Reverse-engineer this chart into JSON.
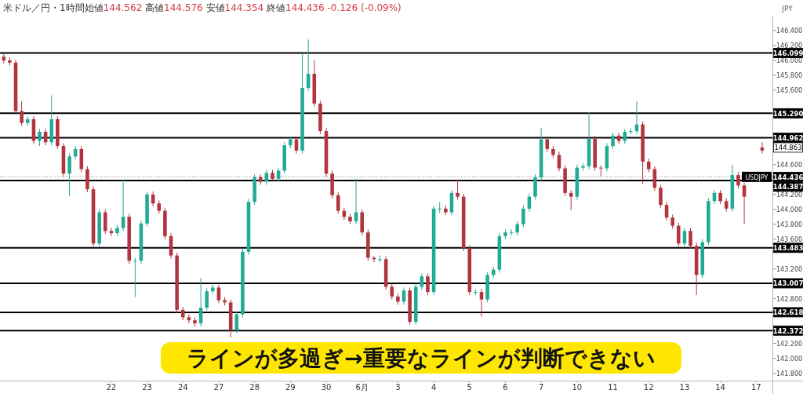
{
  "chart_data": {
    "type": "candlestick",
    "title": "米ドル／円・1時間",
    "subtitle": "始値144.562 高値144.576 安値144.354 終値144.436 -0.126 (-0.09%)",
    "ylabel": "JPY",
    "categories": [
      null,
      null,
      null,
      null,
      null,
      null,
      null,
      null,
      null,
      null,
      null,
      null,
      null,
      null,
      null,
      null,
      null,
      null,
      "22",
      null,
      null,
      null,
      null,
      null,
      "23",
      null,
      null,
      null,
      null,
      null,
      "24",
      null,
      null,
      null,
      null,
      null,
      "27",
      null,
      null,
      null,
      null,
      null,
      "28",
      null,
      null,
      null,
      null,
      null,
      "29",
      null,
      null,
      null,
      null,
      null,
      "30",
      null,
      null,
      null,
      null,
      null,
      "6月",
      null,
      null,
      null,
      null,
      null,
      "3",
      null,
      null,
      null,
      null,
      null,
      "4",
      null,
      null,
      null,
      null,
      null,
      "5",
      null,
      null,
      null,
      null,
      null,
      "6",
      null,
      null,
      null,
      null,
      null,
      "7",
      null,
      null,
      null,
      null,
      null,
      "10",
      null,
      null,
      null,
      null,
      null,
      "11",
      null,
      null,
      null,
      null,
      null,
      "12",
      null,
      null,
      null,
      null,
      null,
      "13",
      null,
      null,
      null,
      null,
      null,
      "14",
      null,
      null,
      null,
      null,
      null,
      "17",
      null
    ],
    "ohlc": [
      [
        146.05,
        146.09,
        145.96,
        146.0
      ],
      [
        146.0,
        146.04,
        145.93,
        145.97
      ],
      [
        145.97,
        146.01,
        145.28,
        145.32
      ],
      [
        145.32,
        145.45,
        145.12,
        145.16
      ],
      [
        145.16,
        145.25,
        145.12,
        145.21
      ],
      [
        145.21,
        145.25,
        144.88,
        144.92
      ],
      [
        144.92,
        145.08,
        144.85,
        145.04
      ],
      [
        145.04,
        145.08,
        144.86,
        144.9
      ],
      [
        144.9,
        145.53,
        144.86,
        145.21
      ],
      [
        145.21,
        145.25,
        144.81,
        144.85
      ],
      [
        144.85,
        144.89,
        144.44,
        144.48
      ],
      [
        144.48,
        144.75,
        144.18,
        144.71
      ],
      [
        144.71,
        144.85,
        144.67,
        144.81
      ],
      [
        144.81,
        144.85,
        144.5,
        144.54
      ],
      [
        144.54,
        144.58,
        144.23,
        144.27
      ],
      [
        144.27,
        144.31,
        143.5,
        143.54
      ],
      [
        143.54,
        144.0,
        143.5,
        143.96
      ],
      [
        143.96,
        144.0,
        143.67,
        143.71
      ],
      [
        143.71,
        143.75,
        143.64,
        143.68
      ],
      [
        143.68,
        143.79,
        143.64,
        143.75
      ],
      [
        143.75,
        144.4,
        143.71,
        143.9
      ],
      [
        143.9,
        143.94,
        143.27,
        143.31
      ],
      [
        143.31,
        143.35,
        142.82,
        143.31
      ],
      [
        143.31,
        143.85,
        143.27,
        143.81
      ],
      [
        143.81,
        144.24,
        143.77,
        144.2
      ],
      [
        144.2,
        144.24,
        144.04,
        144.08
      ],
      [
        144.08,
        144.12,
        143.94,
        143.98
      ],
      [
        143.98,
        144.02,
        143.6,
        143.64
      ],
      [
        143.64,
        143.68,
        143.34,
        143.38
      ],
      [
        143.38,
        143.42,
        142.61,
        142.65
      ],
      [
        142.65,
        142.69,
        142.51,
        142.55
      ],
      [
        142.55,
        142.59,
        142.47,
        142.51
      ],
      [
        142.51,
        142.55,
        142.43,
        142.47
      ],
      [
        142.47,
        143.08,
        142.43,
        142.68
      ],
      [
        142.68,
        142.94,
        142.64,
        142.9
      ],
      [
        142.9,
        142.99,
        142.86,
        142.95
      ],
      [
        142.95,
        142.99,
        142.74,
        142.78
      ],
      [
        142.78,
        142.82,
        142.71,
        142.75
      ],
      [
        142.75,
        142.79,
        142.28,
        142.38
      ],
      [
        142.38,
        142.63,
        142.34,
        142.59
      ],
      [
        142.59,
        143.47,
        142.55,
        143.43
      ],
      [
        143.43,
        144.14,
        143.39,
        144.1
      ],
      [
        144.1,
        144.47,
        144.06,
        144.43
      ],
      [
        144.43,
        144.47,
        144.33,
        144.37
      ],
      [
        144.37,
        144.53,
        144.33,
        144.49
      ],
      [
        144.49,
        144.53,
        144.37,
        144.41
      ],
      [
        144.41,
        144.56,
        144.37,
        144.52
      ],
      [
        144.52,
        144.9,
        144.48,
        144.86
      ],
      [
        144.86,
        144.98,
        144.82,
        144.94
      ],
      [
        144.94,
        144.98,
        144.75,
        144.79
      ],
      [
        144.79,
        146.1,
        144.75,
        145.63
      ],
      [
        145.63,
        146.28,
        145.59,
        145.82
      ],
      [
        145.82,
        146.0,
        145.38,
        145.42
      ],
      [
        145.42,
        145.46,
        145.01,
        145.05
      ],
      [
        145.05,
        145.09,
        144.44,
        144.48
      ],
      [
        144.48,
        144.52,
        144.15,
        144.19
      ],
      [
        144.19,
        144.23,
        143.94,
        143.98
      ],
      [
        143.98,
        144.02,
        143.86,
        143.9
      ],
      [
        143.9,
        143.94,
        143.8,
        143.84
      ],
      [
        143.84,
        144.41,
        143.8,
        143.96
      ],
      [
        143.96,
        144.0,
        143.65,
        143.69
      ],
      [
        143.69,
        143.73,
        143.31,
        143.35
      ],
      [
        143.35,
        143.37,
        143.29,
        143.33
      ],
      [
        143.33,
        143.38,
        143.29,
        143.33
      ],
      [
        143.33,
        143.37,
        142.92,
        142.96
      ],
      [
        142.96,
        143.0,
        142.79,
        142.83
      ],
      [
        142.83,
        142.87,
        142.72,
        142.76
      ],
      [
        142.76,
        142.95,
        142.72,
        142.91
      ],
      [
        142.91,
        142.95,
        142.45,
        142.49
      ],
      [
        142.49,
        143.0,
        142.45,
        142.96
      ],
      [
        142.96,
        143.14,
        142.92,
        143.1
      ],
      [
        143.1,
        143.14,
        142.85,
        142.89
      ],
      [
        142.89,
        144.05,
        142.85,
        144.01
      ],
      [
        144.01,
        144.1,
        143.95,
        144.01
      ],
      [
        144.01,
        144.05,
        143.92,
        143.96
      ],
      [
        143.96,
        144.26,
        143.92,
        144.22
      ],
      [
        144.22,
        144.4,
        144.13,
        144.17
      ],
      [
        144.17,
        144.21,
        143.44,
        143.48
      ],
      [
        143.48,
        143.52,
        142.85,
        142.89
      ],
      [
        142.89,
        142.93,
        142.85,
        142.89
      ],
      [
        142.89,
        142.93,
        142.56,
        142.79
      ],
      [
        142.79,
        143.16,
        142.75,
        143.12
      ],
      [
        143.12,
        143.23,
        143.08,
        143.19
      ],
      [
        143.19,
        143.68,
        143.15,
        143.64
      ],
      [
        143.64,
        143.73,
        143.6,
        143.69
      ],
      [
        143.69,
        143.73,
        143.65,
        143.69
      ],
      [
        143.69,
        143.84,
        143.65,
        143.8
      ],
      [
        143.8,
        144.05,
        143.76,
        144.01
      ],
      [
        144.01,
        144.21,
        143.97,
        144.17
      ],
      [
        144.17,
        144.47,
        144.13,
        144.43
      ],
      [
        144.43,
        145.09,
        144.39,
        144.94
      ],
      [
        144.94,
        144.98,
        144.77,
        144.81
      ],
      [
        144.81,
        144.85,
        144.69,
        144.73
      ],
      [
        144.73,
        144.77,
        144.51,
        144.55
      ],
      [
        144.55,
        144.59,
        144.18,
        144.22
      ],
      [
        144.22,
        144.26,
        143.99,
        144.17
      ],
      [
        144.17,
        144.6,
        144.13,
        144.56
      ],
      [
        144.56,
        144.62,
        144.52,
        144.58
      ],
      [
        144.58,
        145.3,
        144.54,
        144.95
      ],
      [
        144.95,
        144.99,
        144.52,
        144.56
      ],
      [
        144.56,
        144.59,
        144.44,
        144.55
      ],
      [
        144.55,
        144.89,
        144.51,
        144.85
      ],
      [
        144.85,
        145.03,
        144.81,
        144.99
      ],
      [
        144.99,
        145.03,
        144.88,
        144.92
      ],
      [
        144.92,
        145.08,
        144.88,
        145.04
      ],
      [
        145.04,
        145.09,
        145.01,
        145.05
      ],
      [
        145.05,
        145.45,
        145.01,
        145.14
      ],
      [
        145.14,
        145.18,
        144.34,
        144.64
      ],
      [
        144.64,
        144.68,
        144.5,
        144.54
      ],
      [
        144.54,
        144.58,
        144.25,
        144.29
      ],
      [
        144.29,
        144.33,
        144.02,
        144.06
      ],
      [
        144.06,
        144.1,
        143.85,
        143.89
      ],
      [
        143.89,
        143.93,
        143.74,
        143.78
      ],
      [
        143.78,
        143.82,
        143.5,
        143.54
      ],
      [
        143.54,
        143.75,
        143.5,
        143.71
      ],
      [
        143.71,
        143.75,
        143.47,
        143.51
      ],
      [
        143.51,
        143.55,
        142.85,
        143.12
      ],
      [
        143.12,
        143.6,
        143.08,
        143.56
      ],
      [
        143.56,
        144.15,
        143.52,
        144.11
      ],
      [
        144.11,
        144.26,
        144.07,
        144.22
      ],
      [
        144.22,
        144.26,
        144.07,
        144.11
      ],
      [
        144.11,
        144.15,
        143.97,
        144.01
      ],
      [
        144.01,
        144.6,
        143.97,
        144.46
      ],
      [
        144.46,
        144.5,
        144.28,
        144.32
      ],
      [
        144.32,
        144.36,
        143.8,
        144.17
      ],
      null,
      null,
      [
        144.83,
        144.9,
        144.75,
        144.79
      ]
    ],
    "ylim": [
      141.7,
      146.6
    ],
    "yticks": [
      {
        "value": 146.4,
        "label": "146.400"
      },
      {
        "value": 146.2,
        "label": "146.200"
      },
      {
        "value": 146.0,
        "label": "146.000"
      },
      {
        "value": 145.8,
        "label": "145.800"
      },
      {
        "value": 145.6,
        "label": "145.600"
      },
      {
        "value": 144.6,
        "label": "144.600"
      },
      {
        "value": 144.2,
        "label": "144.200"
      },
      {
        "value": 144.0,
        "label": "144.000"
      },
      {
        "value": 143.8,
        "label": "143.800"
      },
      {
        "value": 143.6,
        "label": "143.600"
      },
      {
        "value": 143.2,
        "label": "143.200"
      },
      {
        "value": 142.8,
        "label": "142.800"
      },
      {
        "value": 142.2,
        "label": "142.200"
      },
      {
        "value": 142.0,
        "label": "142.000"
      },
      {
        "value": 141.8,
        "label": "141.800"
      }
    ],
    "ref_lines": [
      {
        "axis": "y",
        "value": 146.099,
        "label": "146.099",
        "color": "#000000"
      },
      {
        "axis": "y",
        "value": 145.29,
        "label": "145.290",
        "color": "#000000"
      },
      {
        "axis": "y",
        "value": 144.962,
        "label": "144.962",
        "color": "#000000"
      },
      {
        "axis": "y",
        "value": 144.387,
        "label": "144.387",
        "color": "#000000"
      },
      {
        "axis": "y",
        "value": 143.483,
        "label": "143.483",
        "color": "#000000"
      },
      {
        "axis": "y",
        "value": 143.007,
        "label": "143.007",
        "color": "#000000"
      },
      {
        "axis": "y",
        "value": 142.618,
        "label": "142.618",
        "color": "#000000"
      },
      {
        "axis": "y",
        "value": 142.372,
        "label": "142.372",
        "color": "#000000"
      },
      {
        "axis": "y",
        "value": 144.436,
        "label": "144.436",
        "color": "#9598a1",
        "line_style": "dotted"
      }
    ],
    "annotations": [
      {
        "text": "USDJPY",
        "x": "17",
        "y": 144.436
      },
      "144.863",
      "ラインが多過ぎ→重要なラインが判断できない"
    ]
  }
}
